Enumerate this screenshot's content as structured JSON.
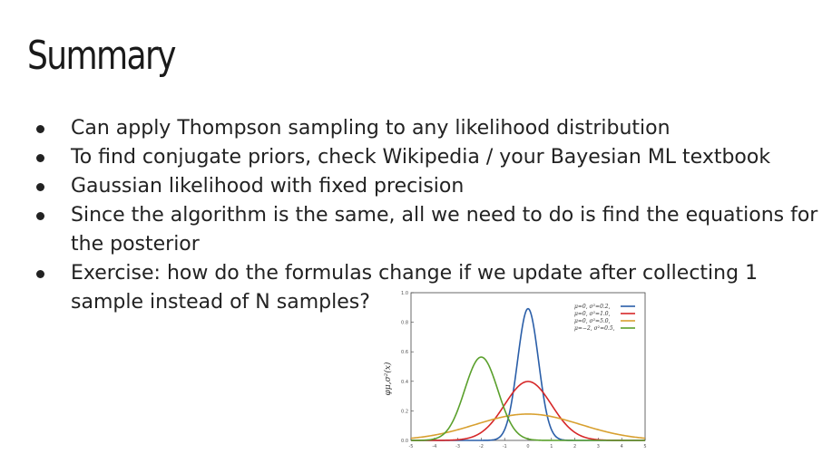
{
  "slide": {
    "title": "Summary",
    "bullets": [
      "Can apply Thompson sampling to any likelihood distribution",
      "To find conjugate priors, check Wikipedia / your Bayesian ML textbook",
      "Gaussian likelihood with fixed precision",
      "Since the algorithm is the same, all we need to do is find the equations for the posterior",
      "Exercise: how do the formulas change if we update after collecting 1 sample instead of N samples?"
    ]
  },
  "chart_data": {
    "type": "line",
    "title": "",
    "xlabel": "",
    "ylabel": "φμ,σ²(x)",
    "xlim": [
      -5,
      5
    ],
    "ylim": [
      0,
      1.0
    ],
    "x_ticks": [
      "-5",
      "-4",
      "-3",
      "-2",
      "-1",
      "0",
      "1",
      "2",
      "3",
      "4",
      "5"
    ],
    "y_ticks": [
      "0.0",
      "0.2",
      "0.4",
      "0.6",
      "0.8",
      "1.0"
    ],
    "legend_position": "top-right",
    "series": [
      {
        "name": "μ=0,  σ²=0.2,",
        "mu": 0,
        "var": 0.2,
        "color": "#2a5ea8"
      },
      {
        "name": "μ=0,  σ²=1.0,",
        "mu": 0,
        "var": 1.0,
        "color": "#d62728"
      },
      {
        "name": "μ=0,  σ²=5.0,",
        "mu": 0,
        "var": 5.0,
        "color": "#d8a030"
      },
      {
        "name": "μ=−2, σ²=0.5,",
        "mu": -2,
        "var": 0.5,
        "color": "#5aa02c"
      }
    ]
  }
}
